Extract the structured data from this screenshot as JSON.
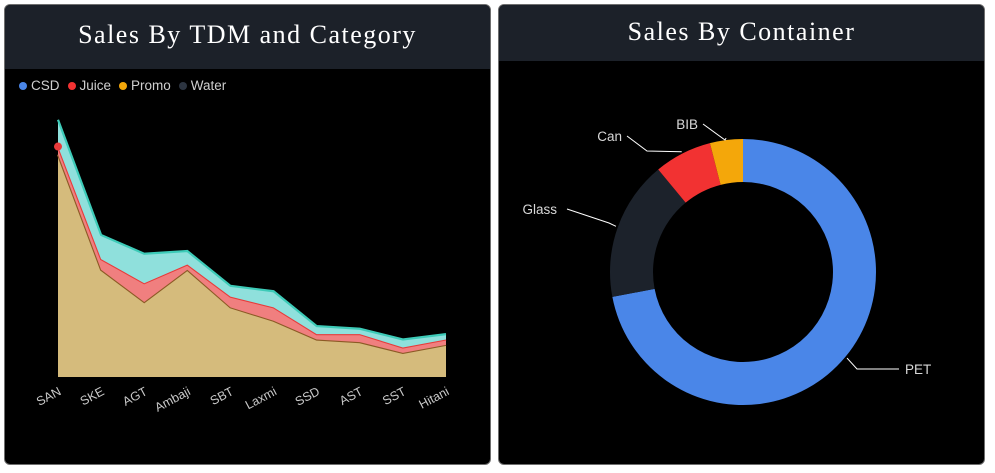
{
  "colors": {
    "csd": "#d5bb7c",
    "csd_line": "#8c5a25",
    "juice": "#f07f7f",
    "juice_line": "#e83a3a",
    "water": "#8fe0dc",
    "water_line": "#3dcbb8",
    "pet": "#4a86e8",
    "glass": "#1c222b",
    "can": "#f23232",
    "bib": "#f4a70a",
    "header_bg": "#1c2129"
  },
  "left_panel": {
    "title": "Sales By TDM and Category",
    "legend": [
      {
        "label": "CSD",
        "color": "#4a86e8"
      },
      {
        "label": "Juice",
        "color": "#f23232"
      },
      {
        "label": "Promo",
        "color": "#f4a70a"
      },
      {
        "label": "Water",
        "color": "#2c3440"
      }
    ]
  },
  "right_panel": {
    "title": "Sales By Container"
  },
  "chart_data": [
    {
      "type": "area",
      "title": "Sales By TDM and Category",
      "stacked": true,
      "categories": [
        "SAN",
        "SKE",
        "AGT",
        "Ambaji",
        "SBT",
        "Laxmi",
        "SSD",
        "AST",
        "SST",
        "Hitani"
      ],
      "series": [
        {
          "name": "CSD",
          "values": [
            83,
            40,
            28,
            40,
            26,
            21,
            14,
            13,
            9,
            12
          ]
        },
        {
          "name": "Juice",
          "values": [
            3,
            4,
            7,
            2,
            4,
            5,
            2,
            3,
            2,
            2
          ]
        },
        {
          "name": "Promo",
          "values": [
            0,
            0,
            0,
            0,
            0,
            0,
            0,
            0,
            0,
            0
          ]
        },
        {
          "name": "Water",
          "values": [
            10,
            9,
            11,
            5,
            4,
            6,
            3,
            2,
            3,
            2
          ]
        }
      ],
      "ylim": [
        0,
        100
      ],
      "legend": "top-left",
      "grid": false,
      "xlabel": "",
      "ylabel": ""
    },
    {
      "type": "pie",
      "title": "Sales By Container",
      "donut": true,
      "slices": [
        {
          "label": "PET",
          "value": 72
        },
        {
          "label": "Glass",
          "value": 17
        },
        {
          "label": "Can",
          "value": 7
        },
        {
          "label": "BIB",
          "value": 4
        }
      ]
    }
  ]
}
